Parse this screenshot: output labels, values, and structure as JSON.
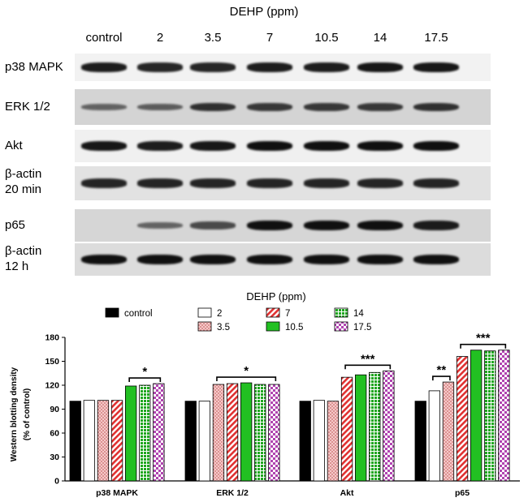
{
  "blot": {
    "title": "DEHP (ppm)",
    "lanes": [
      "control",
      "2",
      "3.5",
      "7",
      "10.5",
      "14",
      "17.5"
    ],
    "rows": [
      {
        "label": "p38 MAPK",
        "label2": "",
        "intensity": [
          0.9,
          0.85,
          0.85,
          0.9,
          0.9,
          0.95,
          0.95
        ],
        "background": "#f2f2f2"
      },
      {
        "label": "ERK 1/2",
        "label2": "",
        "intensity": [
          0.35,
          0.4,
          0.75,
          0.7,
          0.7,
          0.7,
          0.75
        ],
        "background": "#d4d4d4"
      },
      {
        "label": "Akt",
        "label2": "",
        "intensity": [
          0.95,
          0.9,
          0.95,
          1.0,
          1.0,
          1.0,
          1.0
        ],
        "background": "#f0f0f0"
      },
      {
        "label": "β-actin",
        "label2": "20 min",
        "intensity": [
          0.85,
          0.85,
          0.85,
          0.85,
          0.85,
          0.85,
          0.85
        ],
        "background": "#e2e2e2"
      },
      {
        "label": "p65",
        "label2": "",
        "intensity": [
          0.0,
          0.35,
          0.55,
          1.0,
          1.0,
          1.0,
          0.9
        ],
        "background": "#d6d6d6"
      },
      {
        "label": "β-actin",
        "label2": "12 h",
        "intensity": [
          1.0,
          1.0,
          1.0,
          1.0,
          1.0,
          1.0,
          1.0
        ],
        "background": "#dcdcdc"
      }
    ]
  },
  "chart_data": {
    "type": "bar",
    "title": "DEHP (ppm)",
    "xlabel": "",
    "ylabel": "Western blotting density",
    "ylabel2": "(% of control)",
    "ylim": [
      0,
      180
    ],
    "yticks": [
      0,
      30,
      60,
      90,
      120,
      150,
      180
    ],
    "categories": [
      "p38 MAPK",
      "ERK 1/2",
      "Akt",
      "p65"
    ],
    "series": [
      {
        "name": "control",
        "pattern": "solid-black",
        "values": [
          100,
          100,
          100,
          100
        ]
      },
      {
        "name": "2",
        "pattern": "white",
        "values": [
          101,
          100,
          101,
          113
        ]
      },
      {
        "name": "3.5",
        "pattern": "pink-dots",
        "values": [
          101,
          121,
          100,
          124
        ]
      },
      {
        "name": "7",
        "pattern": "red-hatch",
        "values": [
          101,
          122,
          130,
          156
        ]
      },
      {
        "name": "10.5",
        "pattern": "solid-green",
        "values": [
          119,
          123,
          133,
          164
        ]
      },
      {
        "name": "14",
        "pattern": "green-grid",
        "values": [
          120,
          121,
          136,
          163
        ]
      },
      {
        "name": "17.5",
        "pattern": "purple-check",
        "values": [
          122,
          121,
          138,
          164
        ]
      }
    ],
    "legend_position": "top",
    "significance": [
      {
        "category": 0,
        "from_series": 4,
        "to_series": 6,
        "label": "*"
      },
      {
        "category": 1,
        "from_series": 2,
        "to_series": 6,
        "label": "*"
      },
      {
        "category": 2,
        "from_series": 3,
        "to_series": 6,
        "label": "***"
      },
      {
        "category": 3,
        "from_series": 1,
        "to_series": 2,
        "label": "**"
      },
      {
        "category": 3,
        "from_series": 3,
        "to_series": 6,
        "label": "***"
      }
    ]
  }
}
